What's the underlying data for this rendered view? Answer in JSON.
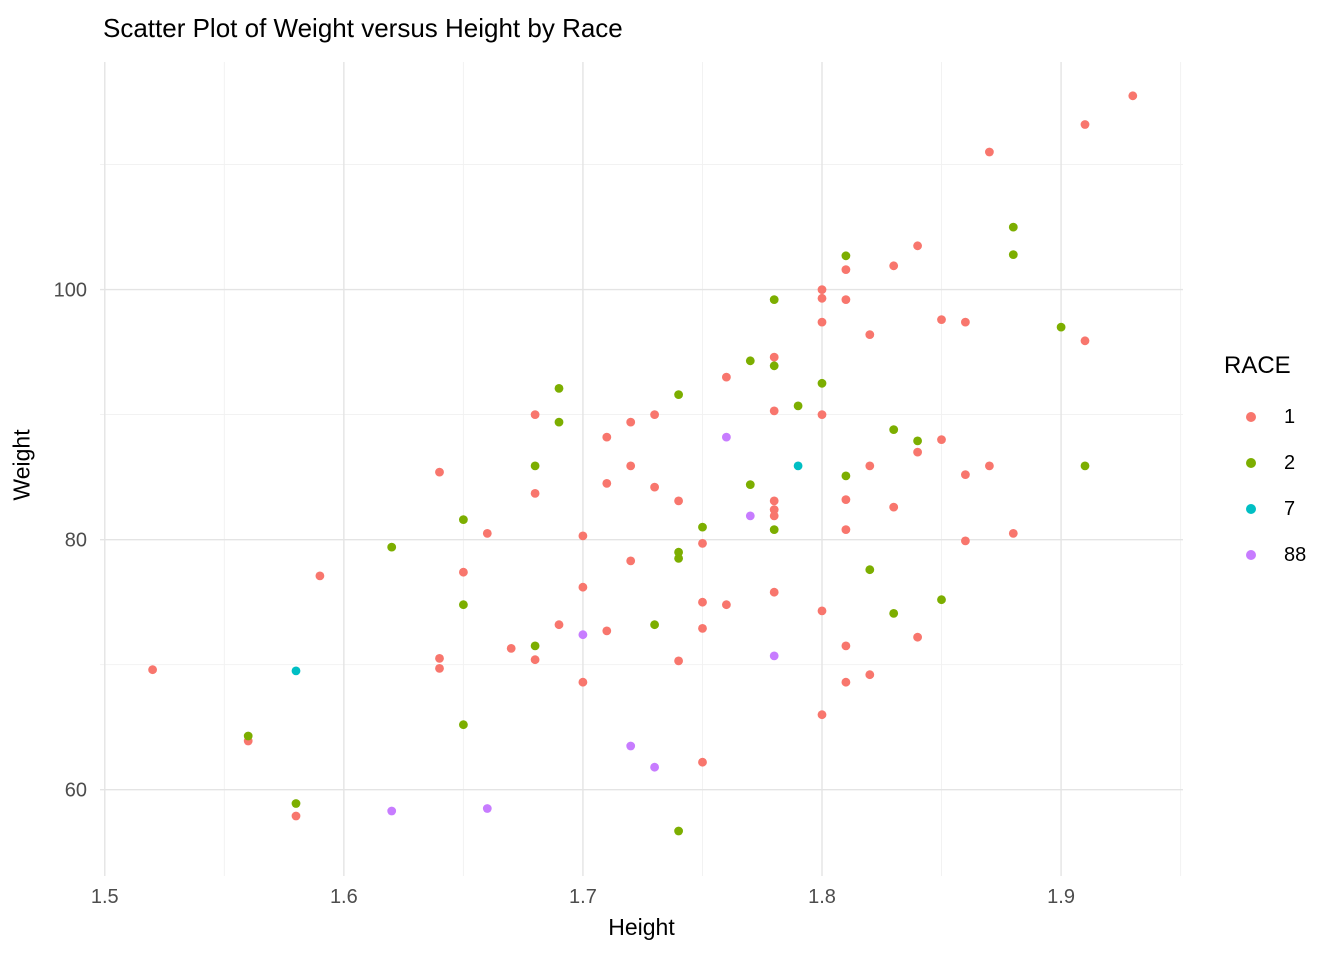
{
  "chart_data": {
    "type": "scatter",
    "title": "Scatter Plot of Weight versus Height by Race",
    "xlabel": "Height",
    "ylabel": "Weight",
    "legend_title": "RACE",
    "legend_position": "right",
    "grid": true,
    "grid_major_color": "#E4E4E4",
    "grid_minor_color": "#F1F1F1",
    "tick_label_color": "#4D4D4D",
    "background_color": "#FFFFFF",
    "xlim": [
      1.498,
      1.951
    ],
    "ylim": [
      53.1,
      118.2
    ],
    "x_ticks": [
      1.5,
      1.6,
      1.7,
      1.8,
      1.9
    ],
    "x_tick_labels": [
      "1.5",
      "1.6",
      "1.7",
      "1.8",
      "1.9"
    ],
    "x_minor": [
      1.55,
      1.65,
      1.75,
      1.85,
      1.95
    ],
    "y_ticks": [
      60,
      80,
      100
    ],
    "y_tick_labels": [
      "60",
      "80",
      "100"
    ],
    "y_minor": [
      70,
      90,
      110
    ],
    "series": [
      {
        "name": "1",
        "color": "#F8766D",
        "points": [
          [
            1.93,
            115.5
          ],
          [
            1.91,
            113.2
          ],
          [
            1.87,
            111.0
          ],
          [
            1.84,
            103.5
          ],
          [
            1.83,
            101.9
          ],
          [
            1.81,
            101.6
          ],
          [
            1.8,
            100.0
          ],
          [
            1.8,
            99.3
          ],
          [
            1.81,
            99.2
          ],
          [
            1.8,
            97.4
          ],
          [
            1.85,
            97.6
          ],
          [
            1.86,
            97.4
          ],
          [
            1.91,
            95.9
          ],
          [
            1.82,
            96.4
          ],
          [
            1.78,
            94.6
          ],
          [
            1.76,
            93.0
          ],
          [
            1.78,
            90.3
          ],
          [
            1.68,
            90.0
          ],
          [
            1.72,
            89.4
          ],
          [
            1.73,
            90.0
          ],
          [
            1.8,
            90.0
          ],
          [
            1.71,
            88.2
          ],
          [
            1.84,
            87.0
          ],
          [
            1.85,
            88.0
          ],
          [
            1.64,
            85.4
          ],
          [
            1.72,
            85.9
          ],
          [
            1.82,
            85.9
          ],
          [
            1.86,
            85.2
          ],
          [
            1.87,
            85.9
          ],
          [
            1.68,
            83.7
          ],
          [
            1.71,
            84.5
          ],
          [
            1.73,
            84.2
          ],
          [
            1.74,
            83.1
          ],
          [
            1.78,
            83.1
          ],
          [
            1.78,
            82.4
          ],
          [
            1.78,
            81.9
          ],
          [
            1.81,
            83.2
          ],
          [
            1.83,
            82.6
          ],
          [
            1.66,
            80.5
          ],
          [
            1.7,
            80.3
          ],
          [
            1.75,
            79.7
          ],
          [
            1.81,
            80.8
          ],
          [
            1.86,
            79.9
          ],
          [
            1.88,
            80.5
          ],
          [
            1.72,
            78.3
          ],
          [
            1.59,
            77.1
          ],
          [
            1.65,
            77.4
          ],
          [
            1.7,
            76.2
          ],
          [
            1.78,
            75.8
          ],
          [
            1.75,
            75.0
          ],
          [
            1.76,
            74.8
          ],
          [
            1.8,
            74.3
          ],
          [
            1.69,
            73.2
          ],
          [
            1.71,
            72.7
          ],
          [
            1.75,
            72.9
          ],
          [
            1.84,
            72.2
          ],
          [
            1.81,
            71.5
          ],
          [
            1.67,
            71.3
          ],
          [
            1.68,
            70.4
          ],
          [
            1.64,
            70.5
          ],
          [
            1.64,
            69.7
          ],
          [
            1.74,
            70.3
          ],
          [
            1.52,
            69.6
          ],
          [
            1.7,
            68.6
          ],
          [
            1.81,
            68.6
          ],
          [
            1.82,
            69.2
          ],
          [
            1.8,
            66.0
          ],
          [
            1.56,
            63.9
          ],
          [
            1.75,
            62.2
          ],
          [
            1.58,
            57.9
          ]
        ]
      },
      {
        "name": "2",
        "color": "#7CAE00",
        "points": [
          [
            1.88,
            105.0
          ],
          [
            1.88,
            102.8
          ],
          [
            1.81,
            102.7
          ],
          [
            1.78,
            99.2
          ],
          [
            1.9,
            97.0
          ],
          [
            1.77,
            94.3
          ],
          [
            1.78,
            93.9
          ],
          [
            1.8,
            92.5
          ],
          [
            1.69,
            92.1
          ],
          [
            1.74,
            91.6
          ],
          [
            1.79,
            90.7
          ],
          [
            1.69,
            89.4
          ],
          [
            1.83,
            88.8
          ],
          [
            1.84,
            87.9
          ],
          [
            1.68,
            85.9
          ],
          [
            1.81,
            85.1
          ],
          [
            1.91,
            85.9
          ],
          [
            1.77,
            84.4
          ],
          [
            1.65,
            81.6
          ],
          [
            1.75,
            81.0
          ],
          [
            1.78,
            80.8
          ],
          [
            1.62,
            79.4
          ],
          [
            1.74,
            79.0
          ],
          [
            1.74,
            78.5
          ],
          [
            1.82,
            77.6
          ],
          [
            1.85,
            75.2
          ],
          [
            1.65,
            74.8
          ],
          [
            1.83,
            74.1
          ],
          [
            1.73,
            73.2
          ],
          [
            1.68,
            71.5
          ],
          [
            1.65,
            65.2
          ],
          [
            1.56,
            64.3
          ],
          [
            1.58,
            58.9
          ],
          [
            1.74,
            56.7
          ]
        ]
      },
      {
        "name": "7",
        "color": "#00BFC4",
        "points": [
          [
            1.79,
            85.9
          ],
          [
            1.58,
            69.5
          ]
        ]
      },
      {
        "name": "88",
        "color": "#C77CFF",
        "points": [
          [
            1.76,
            88.2
          ],
          [
            1.77,
            81.9
          ],
          [
            1.78,
            70.7
          ],
          [
            1.7,
            72.4
          ],
          [
            1.72,
            63.5
          ],
          [
            1.73,
            61.8
          ],
          [
            1.62,
            58.3
          ],
          [
            1.66,
            58.5
          ]
        ]
      }
    ]
  }
}
